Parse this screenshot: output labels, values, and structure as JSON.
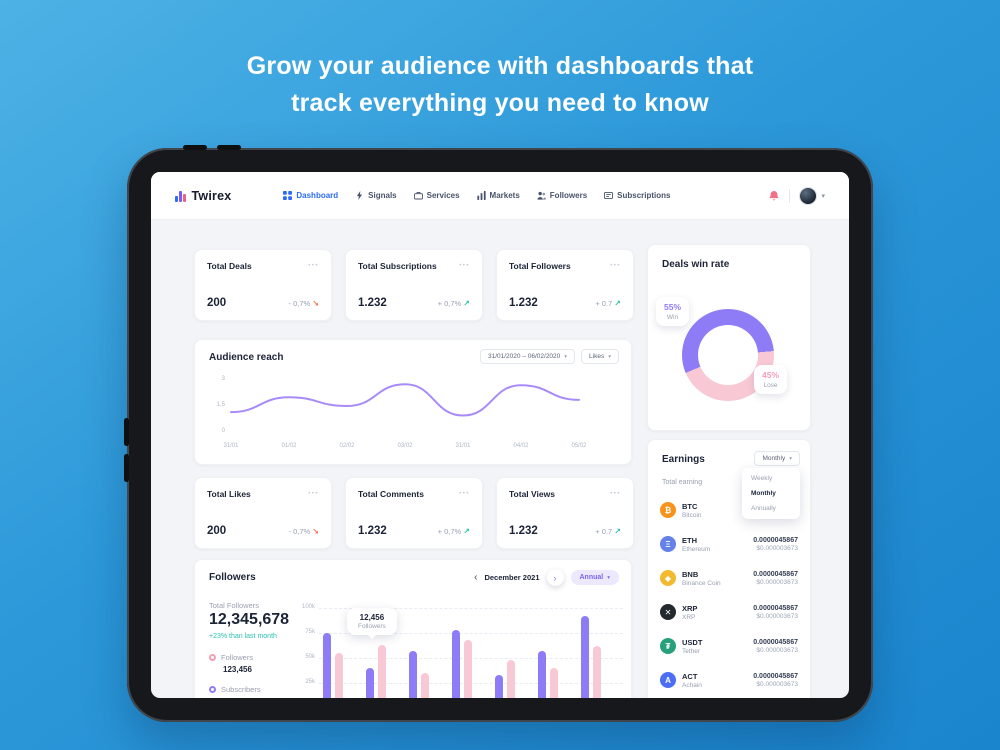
{
  "hero": {
    "line1": "Grow your audience with dashboards that",
    "line2": "track everything you need to know"
  },
  "colors": {
    "accent": "#2b6cf6",
    "positive": "#2bbfae",
    "negative": "#f4734f",
    "purple": "#8e7bf6",
    "pink": "#f8c9d4",
    "line": "#a78bfa"
  },
  "navbar": {
    "brand": "Twirex",
    "brand_bar_colors": [
      "#2b6cf6",
      "#7c5cf0",
      "#f25f8e"
    ],
    "items": [
      {
        "label": "Dashboard",
        "icon": "dashboard-icon",
        "active": true
      },
      {
        "label": "Signals",
        "icon": "signals-icon",
        "active": false
      },
      {
        "label": "Services",
        "icon": "services-icon",
        "active": false
      },
      {
        "label": "Markets",
        "icon": "markets-icon",
        "active": false
      },
      {
        "label": "Followers",
        "icon": "followers-icon",
        "active": false
      },
      {
        "label": "Subscriptions",
        "icon": "subscriptions-icon",
        "active": false
      }
    ]
  },
  "stat_cards": [
    {
      "title": "Total Deals",
      "value": "200",
      "change": "- 0,7%",
      "dir": "down"
    },
    {
      "title": "Total Subscriptions",
      "value": "1.232",
      "change": "+ 0,7%",
      "dir": "up"
    },
    {
      "title": "Total Followers",
      "value": "1.232",
      "change": "+ 0.7",
      "dir": "up"
    },
    {
      "title": "Total Likes",
      "value": "200",
      "change": "- 0,7%",
      "dir": "down"
    },
    {
      "title": "Total Comments",
      "value": "1.232",
      "change": "+ 0,7%",
      "dir": "up"
    },
    {
      "title": "Total Views",
      "value": "1.232",
      "change": "+ 0.7",
      "dir": "up"
    }
  ],
  "deals_win_rate": {
    "title": "Deals win rate",
    "win_text": "55%",
    "win_label": "Win",
    "lose_text": "45%",
    "lose_label": "Lose",
    "win_pct": 55,
    "lose_pct": 45,
    "colors": {
      "win": "#8e7bf6",
      "lose": "#f8c9d4"
    }
  },
  "audience_reach": {
    "title": "Audience reach",
    "date_range": "31/01/2020 – 06/02/2020",
    "metric": "Likes",
    "chart": {
      "type": "line",
      "color": "#a78bfa",
      "ymax": 3,
      "y_ticks": [
        "3",
        "1,5",
        "0"
      ],
      "y_tick_values": [
        3,
        1.5,
        0
      ],
      "x_labels": [
        "31/01",
        "01/02",
        "02/02",
        "03/02",
        "31/01",
        "04/02",
        "05/02"
      ],
      "values": [
        1.15,
        2.0,
        1.5,
        2.75,
        0.95,
        2.7,
        1.85
      ]
    }
  },
  "followers_panel": {
    "title": "Followers",
    "period_label": "December 2021",
    "range_select": "Annual",
    "total_label": "Total Followers",
    "total_value": "12,345,678",
    "delta": "+23% than last month",
    "legend": [
      {
        "label": "Followers",
        "value": "123,456",
        "color": "#f59eb4"
      },
      {
        "label": "Subscribers",
        "value": "",
        "color": "#8e7bf6"
      }
    ],
    "tooltip": {
      "value": "12,456",
      "label": "Followers"
    },
    "chart": {
      "type": "bar",
      "ymax": 100,
      "y_ticks": [
        "100k",
        "75k",
        "50k",
        "25k"
      ],
      "grid_values": [
        100,
        75,
        50,
        25
      ],
      "series": [
        {
          "name": "Followers",
          "color": "#8e7bf6",
          "values": [
            75,
            40,
            57,
            78,
            33,
            57,
            92
          ]
        },
        {
          "name": "Subscribers",
          "color": "#f8c9d4",
          "values": [
            55,
            63,
            35,
            68,
            48,
            40,
            62
          ]
        }
      ]
    }
  },
  "earnings": {
    "title": "Earnings",
    "period_select": "Monthly",
    "menu_options": [
      "Weekly",
      "Monthly",
      "Annually"
    ],
    "subtitle": "Total earning",
    "rows": [
      {
        "symbol": "BTC",
        "name": "Bitcoin",
        "amount": "0.0000045867",
        "usd": "$0.000003673",
        "glyph": "₿",
        "color": "#f7931a"
      },
      {
        "symbol": "ETH",
        "name": "Ethereum",
        "amount": "0.0000045867",
        "usd": "$0.000003673",
        "glyph": "Ξ",
        "color": "#6481e7"
      },
      {
        "symbol": "BNB",
        "name": "Binance Coin",
        "amount": "0.0000045867",
        "usd": "$0.000003673",
        "glyph": "◆",
        "color": "#f3ba2f"
      },
      {
        "symbol": "XRP",
        "name": "XRP",
        "amount": "0.0000045867",
        "usd": "$0.000003673",
        "glyph": "✕",
        "color": "#23292f"
      },
      {
        "symbol": "USDT",
        "name": "Tether",
        "amount": "0.0000045867",
        "usd": "$0.000003673",
        "glyph": "₮",
        "color": "#26a17b"
      },
      {
        "symbol": "ACT",
        "name": "Achain",
        "amount": "0.0000045867",
        "usd": "$0.000003673",
        "glyph": "A",
        "color": "#4b6ef5"
      }
    ]
  }
}
